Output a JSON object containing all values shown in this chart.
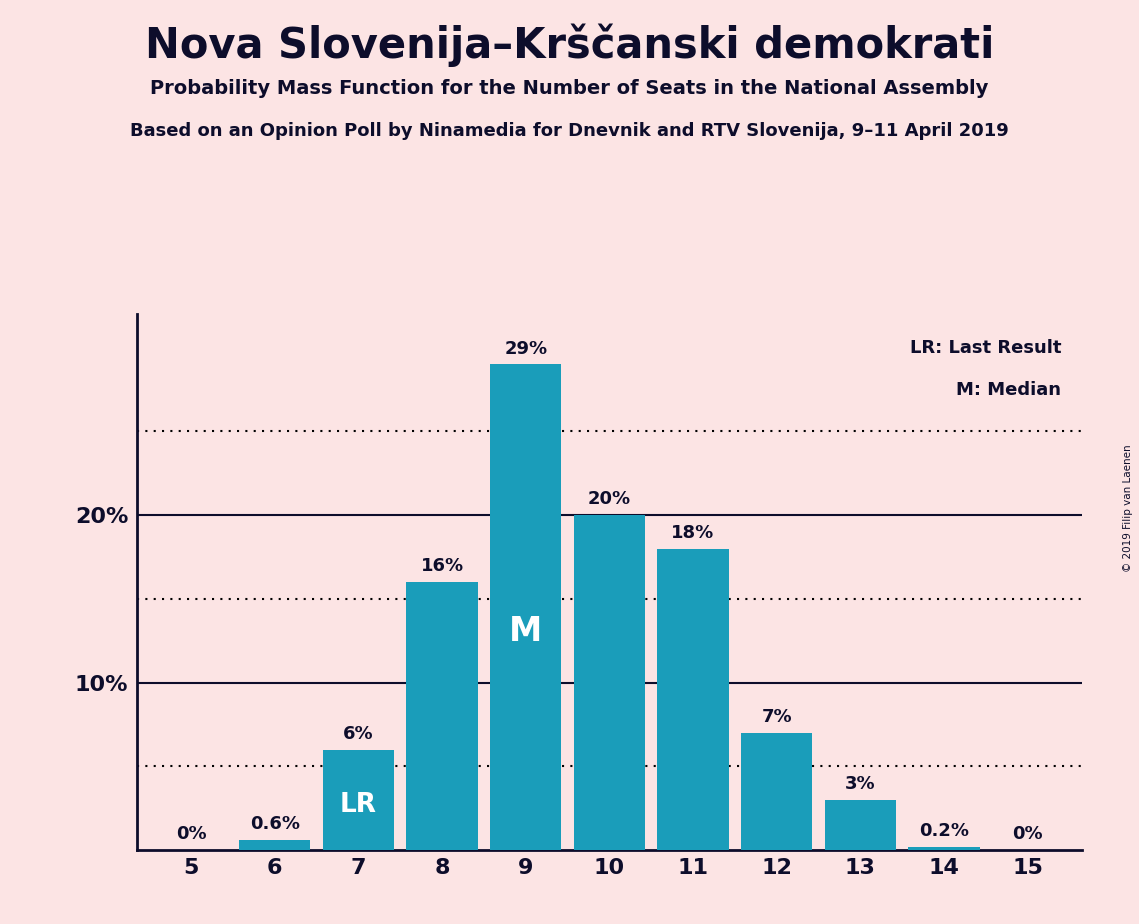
{
  "title": "Nova Slovenija–Krščanski demokrati",
  "subtitle1": "Probability Mass Function for the Number of Seats in the National Assembly",
  "subtitle2": "Based on an Opinion Poll by Ninamedia for Dnevnik and RTV Slovenija, 9–11 April 2019",
  "copyright": "© 2019 Filip van Laenen",
  "seats": [
    5,
    6,
    7,
    8,
    9,
    10,
    11,
    12,
    13,
    14,
    15
  ],
  "probabilities": [
    0.0,
    0.6,
    6.0,
    16.0,
    29.0,
    20.0,
    18.0,
    7.0,
    3.0,
    0.2,
    0.0
  ],
  "bar_color": "#1a9dba",
  "background_color": "#fce4e4",
  "text_color": "#0d0d2b",
  "bar_text_color_light": "#ffffff",
  "lr_seat": 7,
  "median_seat": 9,
  "dotted_yticks": [
    5,
    15,
    25
  ],
  "solid_yticks": [
    10,
    20
  ],
  "ytick_positions": [
    10,
    20
  ],
  "ytick_labels": [
    "10%",
    "20%"
  ],
  "legend_lr": "LR: Last Result",
  "legend_m": "M: Median",
  "figsize": [
    11.39,
    9.24
  ],
  "dpi": 100,
  "xlim": [
    4.35,
    15.65
  ],
  "ylim": [
    0,
    32
  ],
  "bar_width": 0.85
}
